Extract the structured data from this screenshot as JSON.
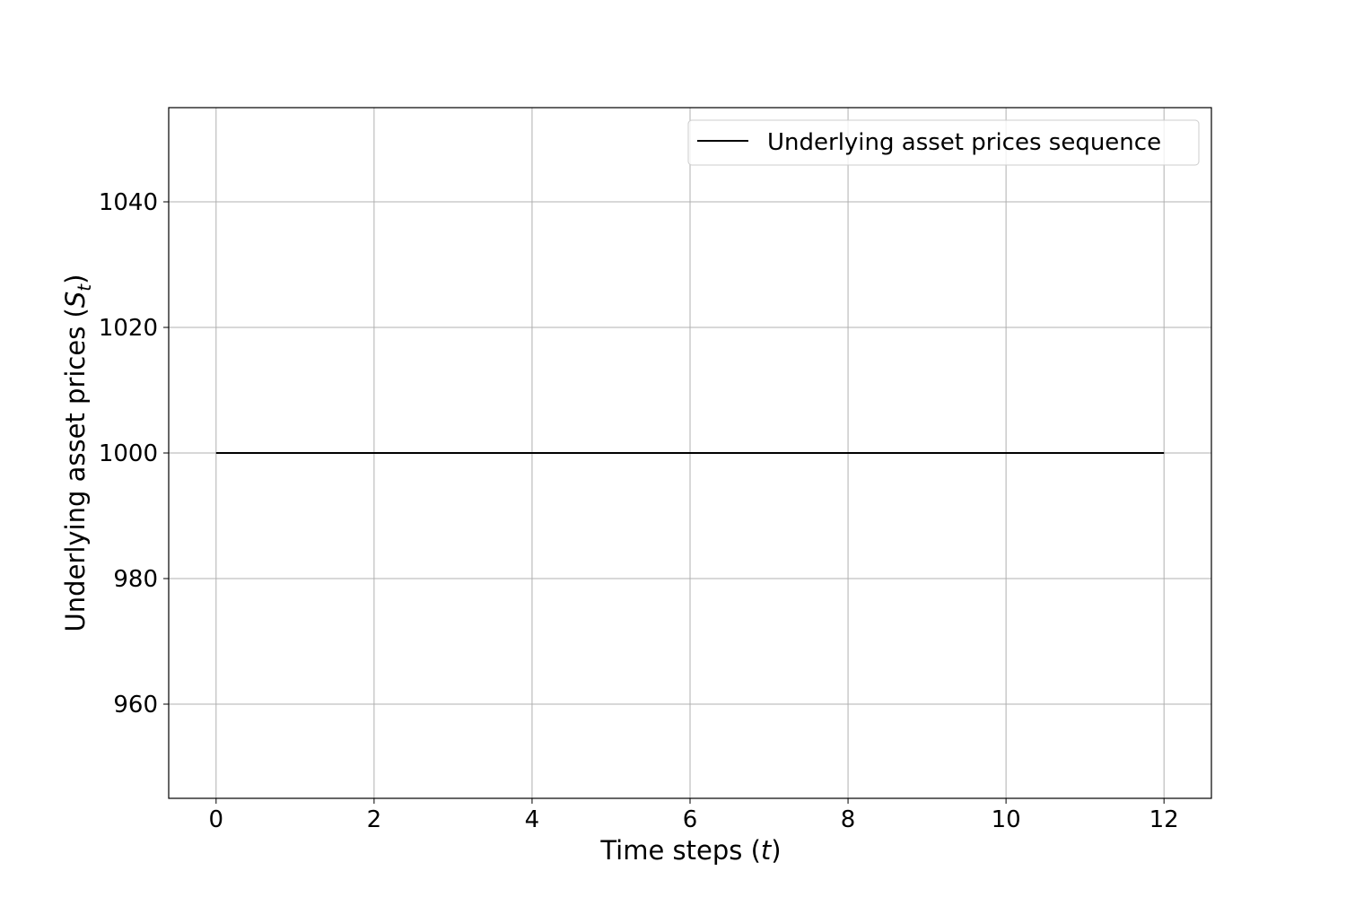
{
  "chart_data": {
    "type": "line",
    "title": "",
    "xlabel": {
      "main": "Time steps (",
      "var": "t",
      "close": ")"
    },
    "ylabel": {
      "main": "Underlying asset prices (",
      "var": "S",
      "sub": "t",
      "close": ")"
    },
    "xlim": [
      -0.6,
      12.6
    ],
    "ylim": [
      945,
      1055
    ],
    "xticks": [
      0,
      2,
      4,
      6,
      8,
      10,
      12
    ],
    "xtick_labels": [
      "0",
      "2",
      "4",
      "6",
      "8",
      "10",
      "12"
    ],
    "yticks": [
      960,
      980,
      1000,
      1020,
      1040
    ],
    "ytick_labels": [
      "960",
      "980",
      "1000",
      "1020",
      "1040"
    ],
    "grid": true,
    "legend_position": "top-right",
    "series": [
      {
        "name": "Underlying asset prices sequence",
        "color": "#000000",
        "x": [
          0,
          1,
          2,
          3,
          4,
          5,
          6,
          7,
          8,
          9,
          10,
          11,
          12
        ],
        "y": [
          1000,
          1000,
          1000,
          1000,
          1000,
          1000,
          1000,
          1000,
          1000,
          1000,
          1000,
          1000,
          1000
        ]
      }
    ],
    "colors": {
      "grid": "#b0b0b0",
      "axes": "#000000",
      "legend_border": "#cccccc"
    }
  }
}
